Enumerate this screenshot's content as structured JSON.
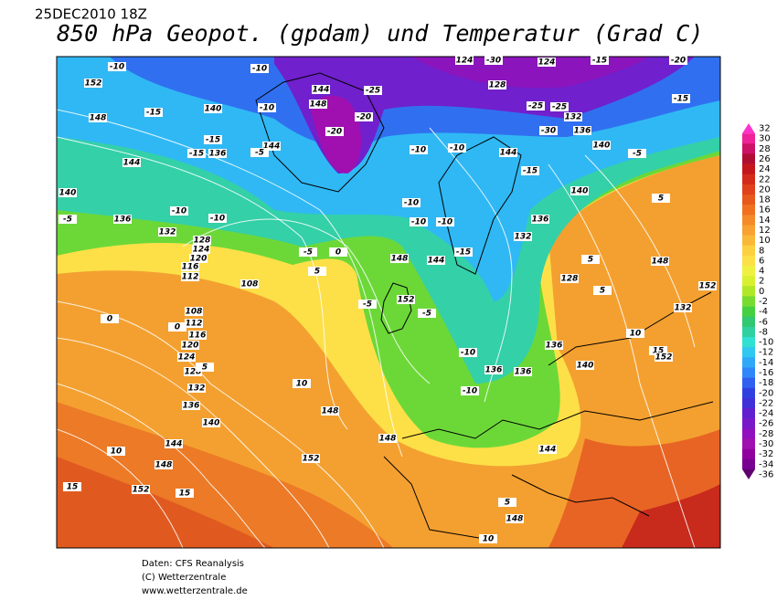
{
  "header": {
    "date": "25DEC2010 18Z",
    "title": "850 hPa Geopot. (gpdam) und  Temperatur (Grad C)"
  },
  "footer": {
    "lines": [
      "Daten: CFS Reanalysis",
      "(C) Wetterzentrale",
      "www.wetterzentrale.de"
    ]
  },
  "colorbar": {
    "values": [
      32,
      30,
      28,
      26,
      24,
      22,
      20,
      18,
      16,
      14,
      12,
      10,
      8,
      6,
      4,
      2,
      0,
      -2,
      -4,
      -6,
      -8,
      -10,
      -12,
      -14,
      -16,
      -18,
      -20,
      -22,
      -24,
      -26,
      -28,
      -30,
      -32,
      -34,
      -36
    ],
    "colors": [
      "#ff33cc",
      "#ee2299",
      "#cc1166",
      "#b00d33",
      "#c4161c",
      "#d42a1a",
      "#e0401a",
      "#e8581c",
      "#f07020",
      "#f48a28",
      "#f8a030",
      "#fab838",
      "#fcd040",
      "#fde048",
      "#f0f040",
      "#d8f030",
      "#b0e828",
      "#78dc30",
      "#44d040",
      "#30c870",
      "#30d0a0",
      "#30e0d0",
      "#30c8f0",
      "#30a8f8",
      "#3088f8",
      "#3060f0",
      "#3040e0",
      "#4030d8",
      "#6020d0",
      "#7818c8",
      "#9010c0",
      "#a010b0",
      "#9000a0",
      "#780090",
      "#600070"
    ]
  },
  "map_labels": [
    -10,
    152,
    148,
    -15,
    140,
    -10,
    -10,
    144,
    -15,
    136,
    -15,
    144,
    -5,
    140,
    -5,
    136,
    -10,
    -10,
    132,
    128,
    124,
    120,
    116,
    112,
    108,
    -5,
    0,
    5,
    148,
    144,
    -15,
    152,
    -5,
    -5,
    108,
    112,
    116,
    120,
    124,
    128,
    132,
    136,
    140,
    144,
    148,
    152,
    15,
    15,
    10,
    10,
    148,
    152,
    148,
    144,
    5,
    148,
    10,
    0,
    0,
    5,
    -10,
    -10,
    136,
    136,
    136,
    140,
    10,
    15,
    152,
    -25,
    -20,
    -20,
    148,
    144,
    124,
    -30,
    124,
    -15,
    -20,
    128,
    -25,
    -25,
    132,
    -30,
    136,
    140,
    -15,
    -5,
    -10,
    -10,
    144,
    -15,
    -10,
    -10,
    -10,
    140,
    5,
    132,
    136,
    128,
    148,
    132,
    152,
    5,
    5
  ]
}
